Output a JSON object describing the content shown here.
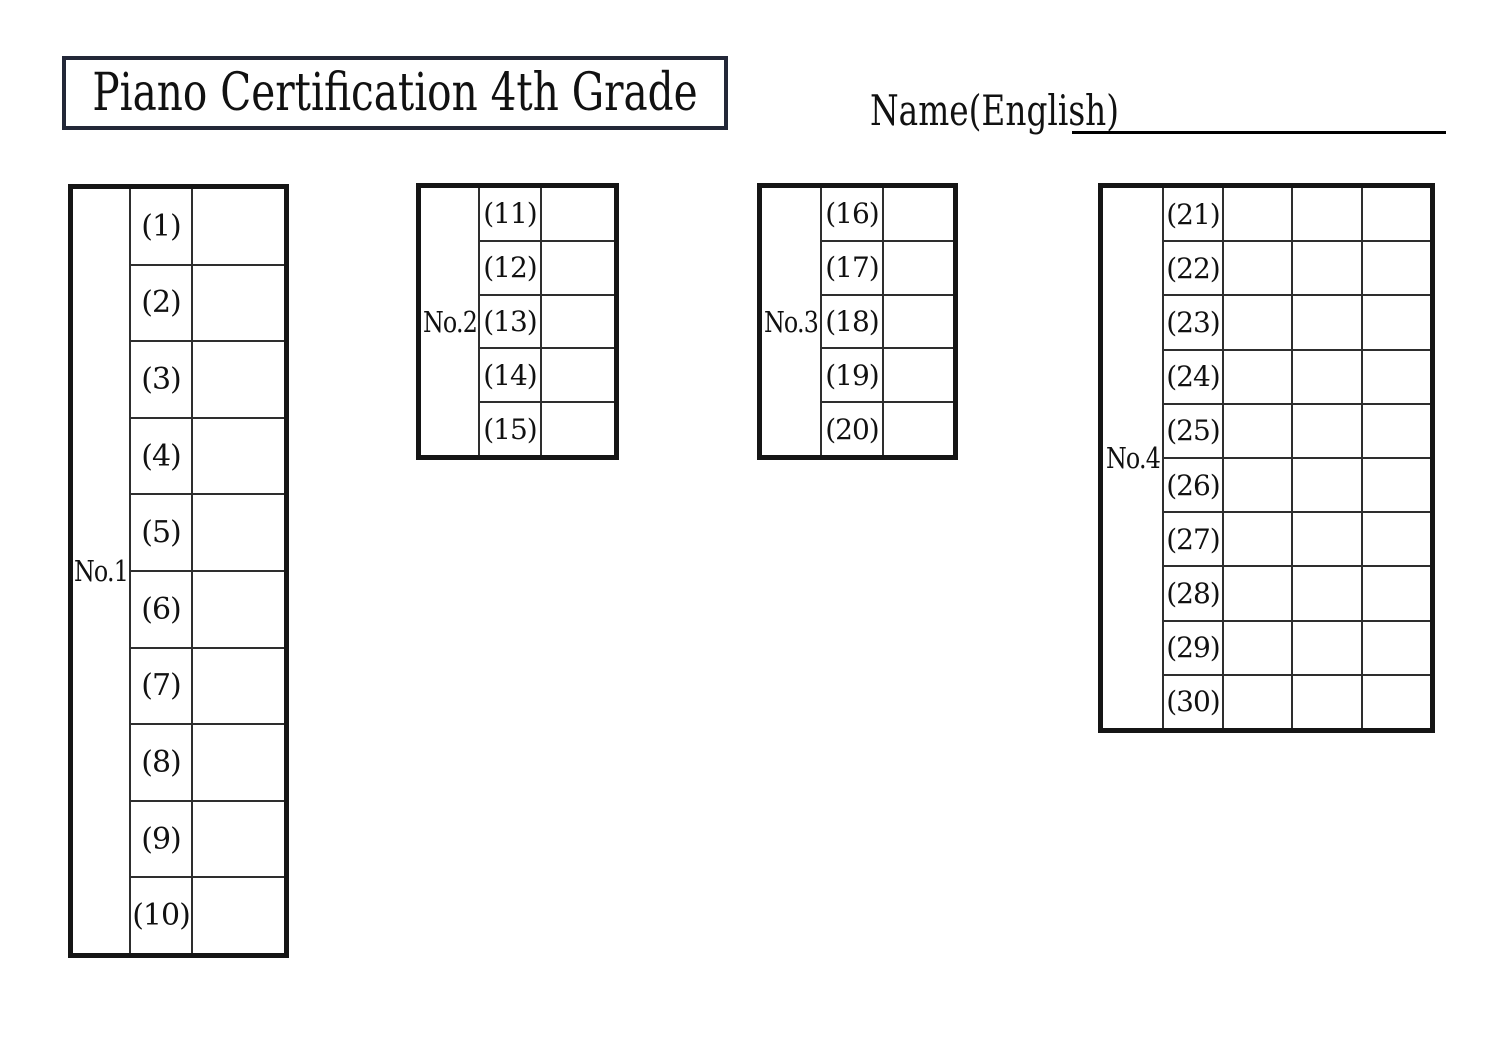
{
  "title": "Piano Certification 4th Grade",
  "name_field": {
    "label": "Name(English)",
    "value": ""
  },
  "tables": [
    {
      "label": "No.1",
      "answer_columns": 1,
      "rows": [
        {
          "num": "(1)",
          "answers": [
            ""
          ]
        },
        {
          "num": "(2)",
          "answers": [
            ""
          ]
        },
        {
          "num": "(3)",
          "answers": [
            ""
          ]
        },
        {
          "num": "(4)",
          "answers": [
            ""
          ]
        },
        {
          "num": "(5)",
          "answers": [
            ""
          ]
        },
        {
          "num": "(6)",
          "answers": [
            ""
          ]
        },
        {
          "num": "(7)",
          "answers": [
            ""
          ]
        },
        {
          "num": "(8)",
          "answers": [
            ""
          ]
        },
        {
          "num": "(9)",
          "answers": [
            ""
          ]
        },
        {
          "num": "(10)",
          "answers": [
            ""
          ]
        }
      ]
    },
    {
      "label": "No.2",
      "answer_columns": 1,
      "rows": [
        {
          "num": "(11)",
          "answers": [
            ""
          ]
        },
        {
          "num": "(12)",
          "answers": [
            ""
          ]
        },
        {
          "num": "(13)",
          "answers": [
            ""
          ]
        },
        {
          "num": "(14)",
          "answers": [
            ""
          ]
        },
        {
          "num": "(15)",
          "answers": [
            ""
          ]
        }
      ]
    },
    {
      "label": "No.3",
      "answer_columns": 1,
      "rows": [
        {
          "num": "(16)",
          "answers": [
            ""
          ]
        },
        {
          "num": "(17)",
          "answers": [
            ""
          ]
        },
        {
          "num": "(18)",
          "answers": [
            ""
          ]
        },
        {
          "num": "(19)",
          "answers": [
            ""
          ]
        },
        {
          "num": "(20)",
          "answers": [
            ""
          ]
        }
      ]
    },
    {
      "label": "No.4",
      "answer_columns": 3,
      "rows": [
        {
          "num": "(21)",
          "answers": [
            "",
            "",
            ""
          ]
        },
        {
          "num": "(22)",
          "answers": [
            "",
            "",
            ""
          ]
        },
        {
          "num": "(23)",
          "answers": [
            "",
            "",
            ""
          ]
        },
        {
          "num": "(24)",
          "answers": [
            "",
            "",
            ""
          ]
        },
        {
          "num": "(25)",
          "answers": [
            "",
            "",
            ""
          ]
        },
        {
          "num": "(26)",
          "answers": [
            "",
            "",
            ""
          ]
        },
        {
          "num": "(27)",
          "answers": [
            "",
            "",
            ""
          ]
        },
        {
          "num": "(28)",
          "answers": [
            "",
            "",
            ""
          ]
        },
        {
          "num": "(29)",
          "answers": [
            "",
            "",
            ""
          ]
        },
        {
          "num": "(30)",
          "answers": [
            "",
            "",
            ""
          ]
        }
      ]
    }
  ]
}
